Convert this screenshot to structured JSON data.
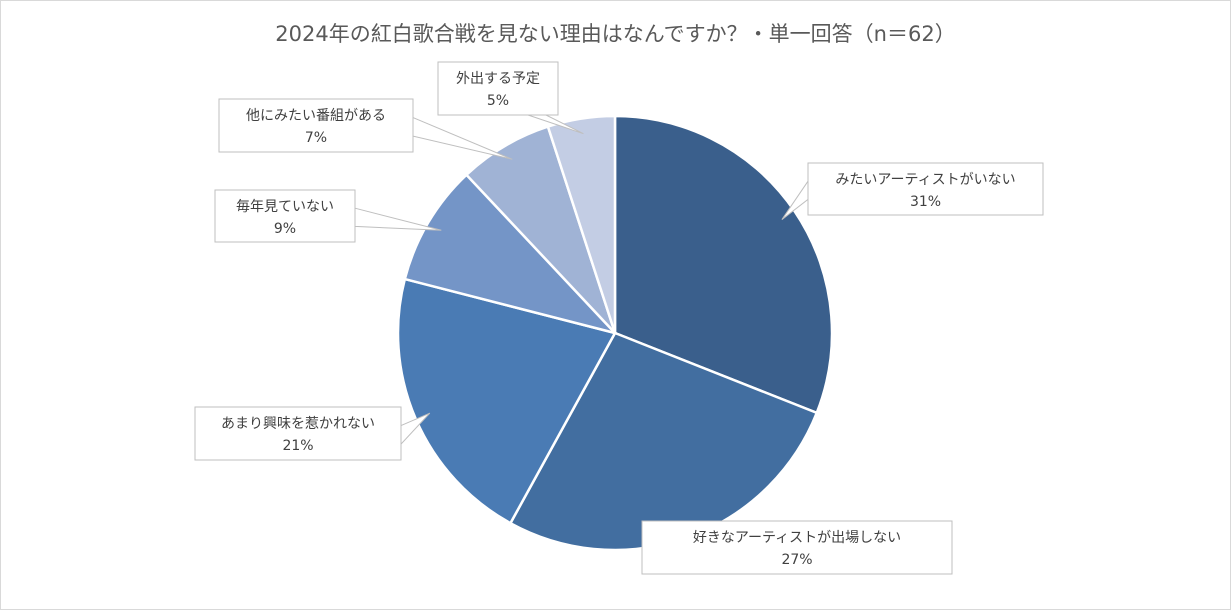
{
  "chart_data": {
    "type": "pie",
    "title": "2024年の紅白歌合戦を見ない理由はなんですか？・単一回答（n＝62）",
    "slices": [
      {
        "label": "みたいアーティストがいない",
        "value": 31,
        "value_label": "31%",
        "color": "#3a5f8c"
      },
      {
        "label": "好きなアーティストが出場しない",
        "value": 27,
        "value_label": "27%",
        "color": "#426ea0"
      },
      {
        "label": "あまり興味を惹かれない",
        "value": 21,
        "value_label": "21%",
        "color": "#4a7bb4"
      },
      {
        "label": "毎年見ていない",
        "value": 9,
        "value_label": "9%",
        "color": "#7495c7"
      },
      {
        "label": "他にみたい番組がある",
        "value": 7,
        "value_label": "7%",
        "color": "#a0b3d5"
      },
      {
        "label": "外出する予定",
        "value": 5,
        "value_label": "5%",
        "color": "#c3cde4"
      }
    ],
    "legend": "none",
    "data_labels": "callouts"
  }
}
